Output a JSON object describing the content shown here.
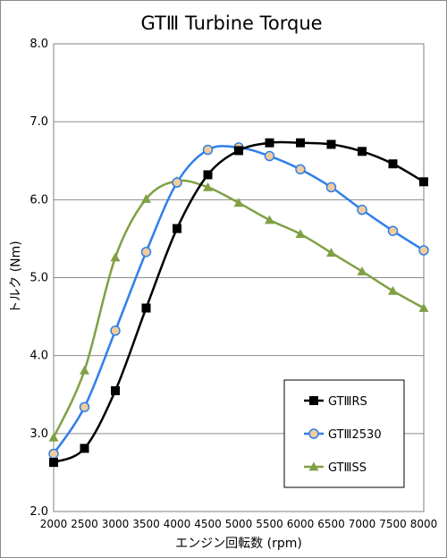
{
  "chart_data": {
    "type": "line",
    "title": "GTⅢ Turbine Torque",
    "xlabel": "エンジン回転数 (rpm)",
    "ylabel": "トルク  (Nm)",
    "x": [
      2000,
      2500,
      3000,
      3500,
      4000,
      4500,
      5000,
      5500,
      6000,
      6500,
      7000,
      7500,
      8000
    ],
    "xlim": [
      2000,
      8000
    ],
    "ylim": [
      2.0,
      8.0
    ],
    "x_ticks": [
      "2000",
      "2500",
      "3000",
      "3500",
      "4000",
      "4500",
      "5000",
      "5500",
      "6000",
      "6500",
      "7000",
      "7500",
      "8000"
    ],
    "y_ticks": [
      "2.0",
      "3.0",
      "4.0",
      "5.0",
      "6.0",
      "7.0",
      "8.0"
    ],
    "grid": "horizontal",
    "legend_position": "bottom-right",
    "series": [
      {
        "name": "GTⅢRS",
        "color": "#000000",
        "marker": "square",
        "values": [
          2.63,
          2.81,
          3.55,
          4.61,
          5.63,
          6.32,
          6.63,
          6.73,
          6.73,
          6.71,
          6.62,
          6.46,
          6.23
        ]
      },
      {
        "name": "GTⅢ2530",
        "color": "#2f7fea",
        "marker": "circle",
        "values": [
          2.74,
          3.34,
          4.32,
          5.33,
          6.22,
          6.64,
          6.67,
          6.56,
          6.39,
          6.16,
          5.87,
          5.6,
          5.35
        ]
      },
      {
        "name": "GTⅢSS",
        "color": "#80a045",
        "marker": "triangle",
        "values": [
          2.95,
          3.81,
          5.26,
          6.01,
          6.24,
          6.16,
          5.96,
          5.74,
          5.56,
          5.32,
          5.08,
          4.83,
          4.61
        ]
      }
    ]
  }
}
